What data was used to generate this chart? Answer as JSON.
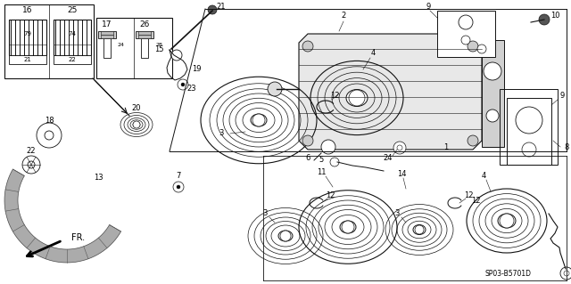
{
  "bg_color": "#ffffff",
  "line_color": "#111111",
  "fig_width": 6.4,
  "fig_height": 3.19,
  "dpi": 100,
  "diagram_reference_code": "SP03-B5701D"
}
